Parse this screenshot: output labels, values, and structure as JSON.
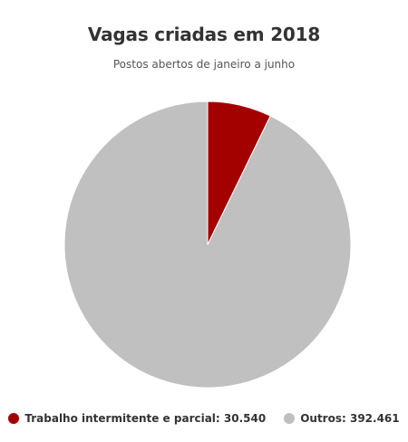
{
  "chart_data": {
    "type": "pie",
    "title": "Vagas criadas em 2018",
    "subtitle": "Postos abertos de janeiro a junho",
    "legend_position": "bottom",
    "slices": [
      {
        "label": "Trabalho intermitente e parcial",
        "value": 30540,
        "value_label": "30.540",
        "color": "#a30000"
      },
      {
        "label": "Outros",
        "value": 392461,
        "value_label": "392.461",
        "color": "#c0c0c0"
      }
    ],
    "legend": [
      "Trabalho intermitente e parcial: 30.540",
      "Outros: 392.461"
    ]
  }
}
